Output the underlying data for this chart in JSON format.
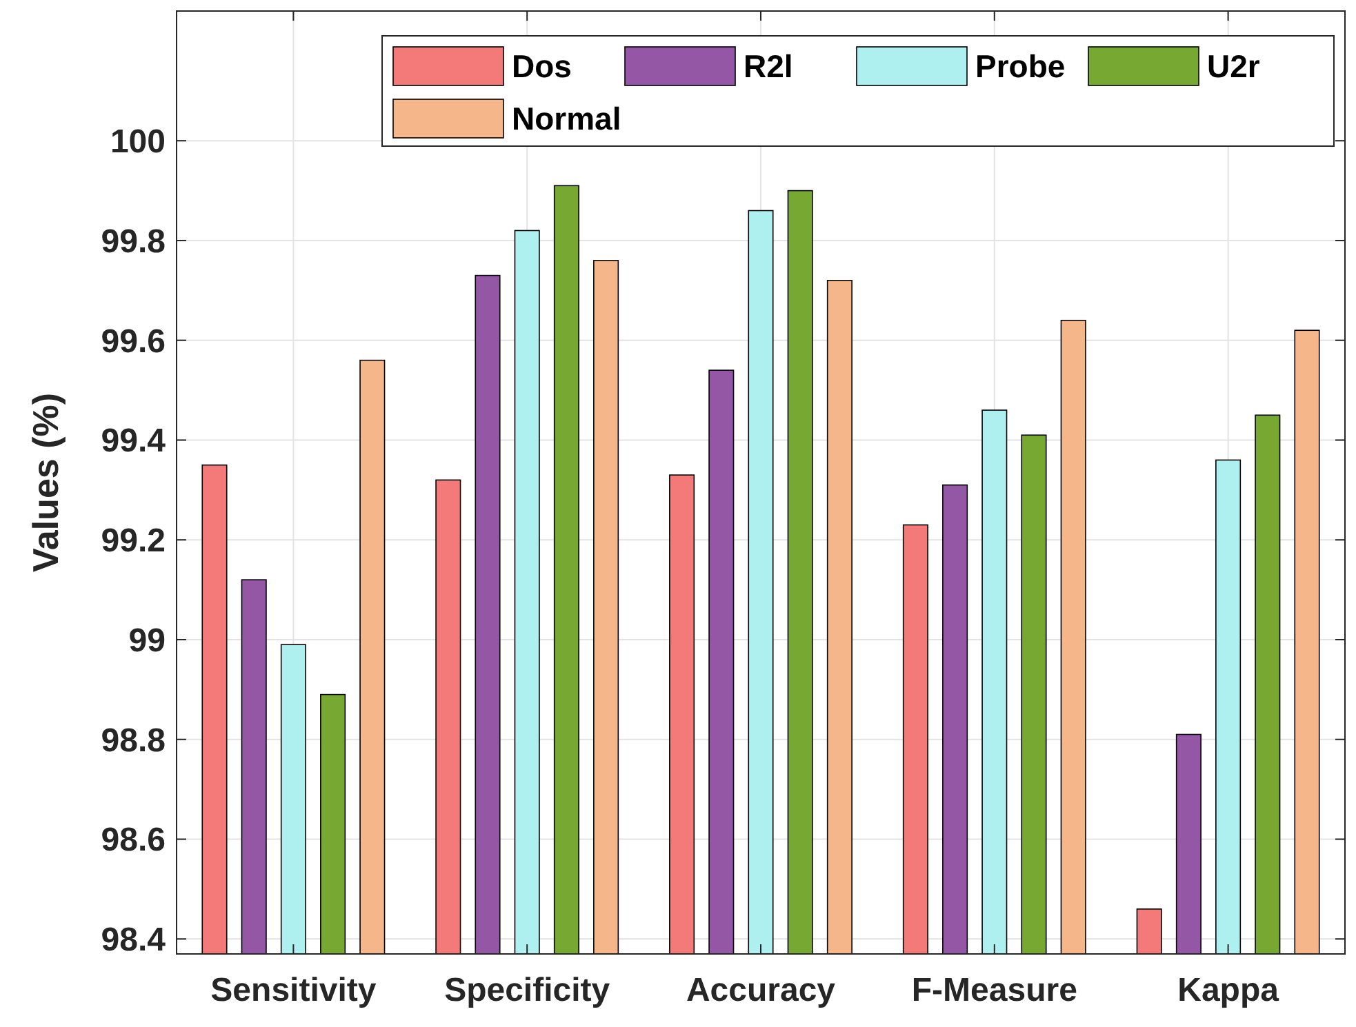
{
  "chart_data": {
    "type": "bar",
    "ylabel": "Values (%)",
    "categories": [
      "Sensitivity",
      "Specificity",
      "Accuracy",
      "F-Measure",
      "Kappa"
    ],
    "series": [
      {
        "name": "Dos",
        "color": "#f47a7a",
        "values": [
          99.35,
          99.32,
          99.33,
          99.23,
          98.46
        ]
      },
      {
        "name": "R2l",
        "color": "#9457a6",
        "values": [
          99.12,
          99.73,
          99.54,
          99.31,
          98.81
        ]
      },
      {
        "name": "Probe",
        "color": "#aef0f0",
        "values": [
          98.99,
          99.82,
          99.86,
          99.46,
          99.36
        ]
      },
      {
        "name": "U2r",
        "color": "#77a832",
        "values": [
          98.89,
          99.91,
          99.9,
          99.41,
          99.45
        ]
      },
      {
        "name": "Normal",
        "color": "#f5b78a",
        "values": [
          99.56,
          99.76,
          99.72,
          99.64,
          99.62
        ]
      }
    ],
    "ylim": [
      98.37,
      100.26
    ],
    "yticks": [
      98.4,
      98.6,
      98.8,
      99,
      99.2,
      99.4,
      99.6,
      99.8,
      100
    ],
    "grid": true,
    "legend": "top right"
  }
}
